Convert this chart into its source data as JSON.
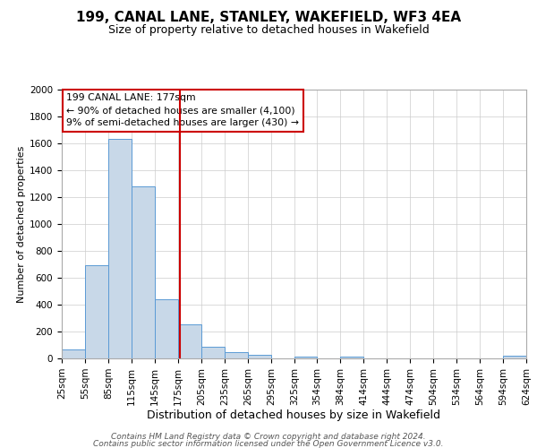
{
  "title": "199, CANAL LANE, STANLEY, WAKEFIELD, WF3 4EA",
  "subtitle": "Size of property relative to detached houses in Wakefield",
  "xlabel": "Distribution of detached houses by size in Wakefield",
  "ylabel": "Number of detached properties",
  "bar_color": "#c8d8e8",
  "bar_edge_color": "#5b9bd5",
  "property_line_color": "#cc0000",
  "property_sqm": 177,
  "annotation_line1": "199 CANAL LANE: 177sqm",
  "annotation_line2": "← 90% of detached houses are smaller (4,100)",
  "annotation_line3": "9% of semi-detached houses are larger (430) →",
  "annotation_box_color": "#ffffff",
  "annotation_box_edge_color": "#cc0000",
  "bin_edges": [
    25,
    55,
    85,
    115,
    145,
    175,
    205,
    235,
    265,
    295,
    325,
    354,
    384,
    414,
    444,
    474,
    504,
    534,
    564,
    594,
    624
  ],
  "bar_heights": [
    65,
    695,
    1635,
    1280,
    440,
    255,
    90,
    50,
    30,
    0,
    15,
    0,
    15,
    0,
    0,
    0,
    0,
    0,
    0,
    20
  ],
  "ylim": [
    0,
    2000
  ],
  "yticks": [
    0,
    200,
    400,
    600,
    800,
    1000,
    1200,
    1400,
    1600,
    1800,
    2000
  ],
  "footer_line1": "Contains HM Land Registry data © Crown copyright and database right 2024.",
  "footer_line2": "Contains public sector information licensed under the Open Government Licence v3.0.",
  "background_color": "#ffffff",
  "grid_color": "#cccccc",
  "title_fontsize": 11,
  "subtitle_fontsize": 9,
  "xlabel_fontsize": 9,
  "ylabel_fontsize": 8,
  "tick_fontsize": 7.5,
  "footer_fontsize": 6.5
}
